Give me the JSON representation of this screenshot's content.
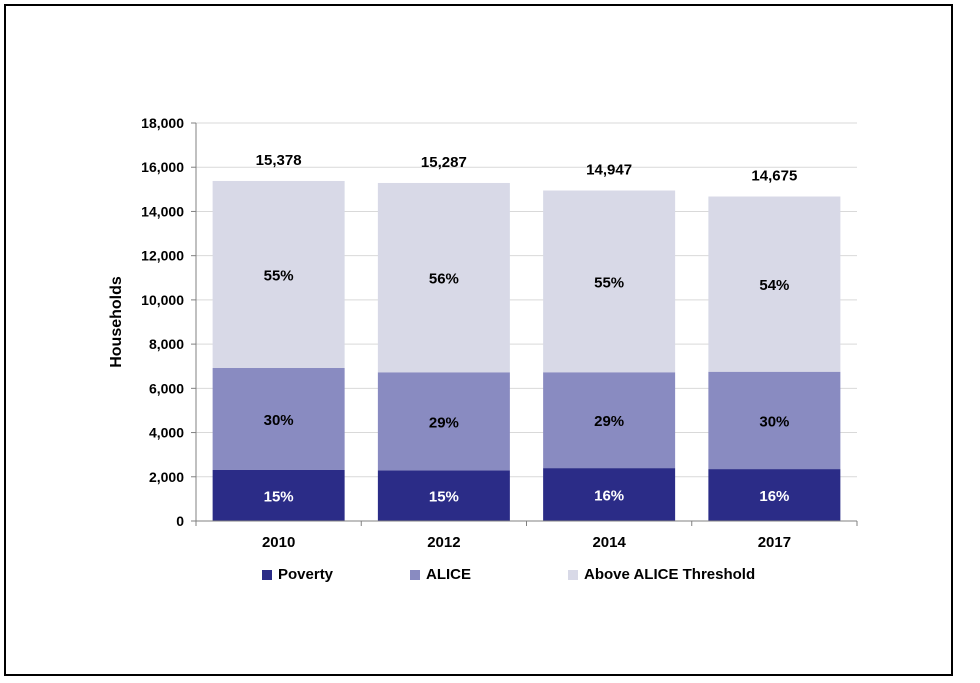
{
  "chart_data": {
    "type": "bar",
    "stacked": true,
    "categories": [
      "2010",
      "2012",
      "2014",
      "2017"
    ],
    "totals": [
      15378,
      15287,
      14947,
      14675
    ],
    "total_labels": [
      "15,378",
      "15,287",
      "14,947",
      "14,675"
    ],
    "series": [
      {
        "name": "Poverty",
        "color": "#2B2C87",
        "label_color": "#ffffff",
        "values": [
          2307,
          2293,
          2392,
          2348
        ],
        "labels": [
          "15%",
          "15%",
          "16%",
          "16%"
        ]
      },
      {
        "name": "ALICE",
        "color": "#898BC1",
        "label_color": "#000000",
        "values": [
          4613,
          4433,
          4335,
          4403
        ],
        "labels": [
          "30%",
          "29%",
          "29%",
          "30%"
        ]
      },
      {
        "name": "Above ALICE Threshold",
        "color": "#D8D9E7",
        "label_color": "#000000",
        "values": [
          8458,
          8561,
          8220,
          7924
        ],
        "labels": [
          "55%",
          "56%",
          "55%",
          "54%"
        ]
      }
    ],
    "title": "",
    "xlabel": "",
    "ylabel": "Households",
    "ylim": [
      0,
      18000
    ],
    "yticks": [
      0,
      2000,
      4000,
      6000,
      8000,
      10000,
      12000,
      14000,
      16000,
      18000
    ],
    "ytick_labels": [
      "0",
      "2,000",
      "4,000",
      "6,000",
      "8,000",
      "10,000",
      "12,000",
      "14,000",
      "16,000",
      "18,000"
    ],
    "grid": true,
    "legend_position": "bottom"
  }
}
